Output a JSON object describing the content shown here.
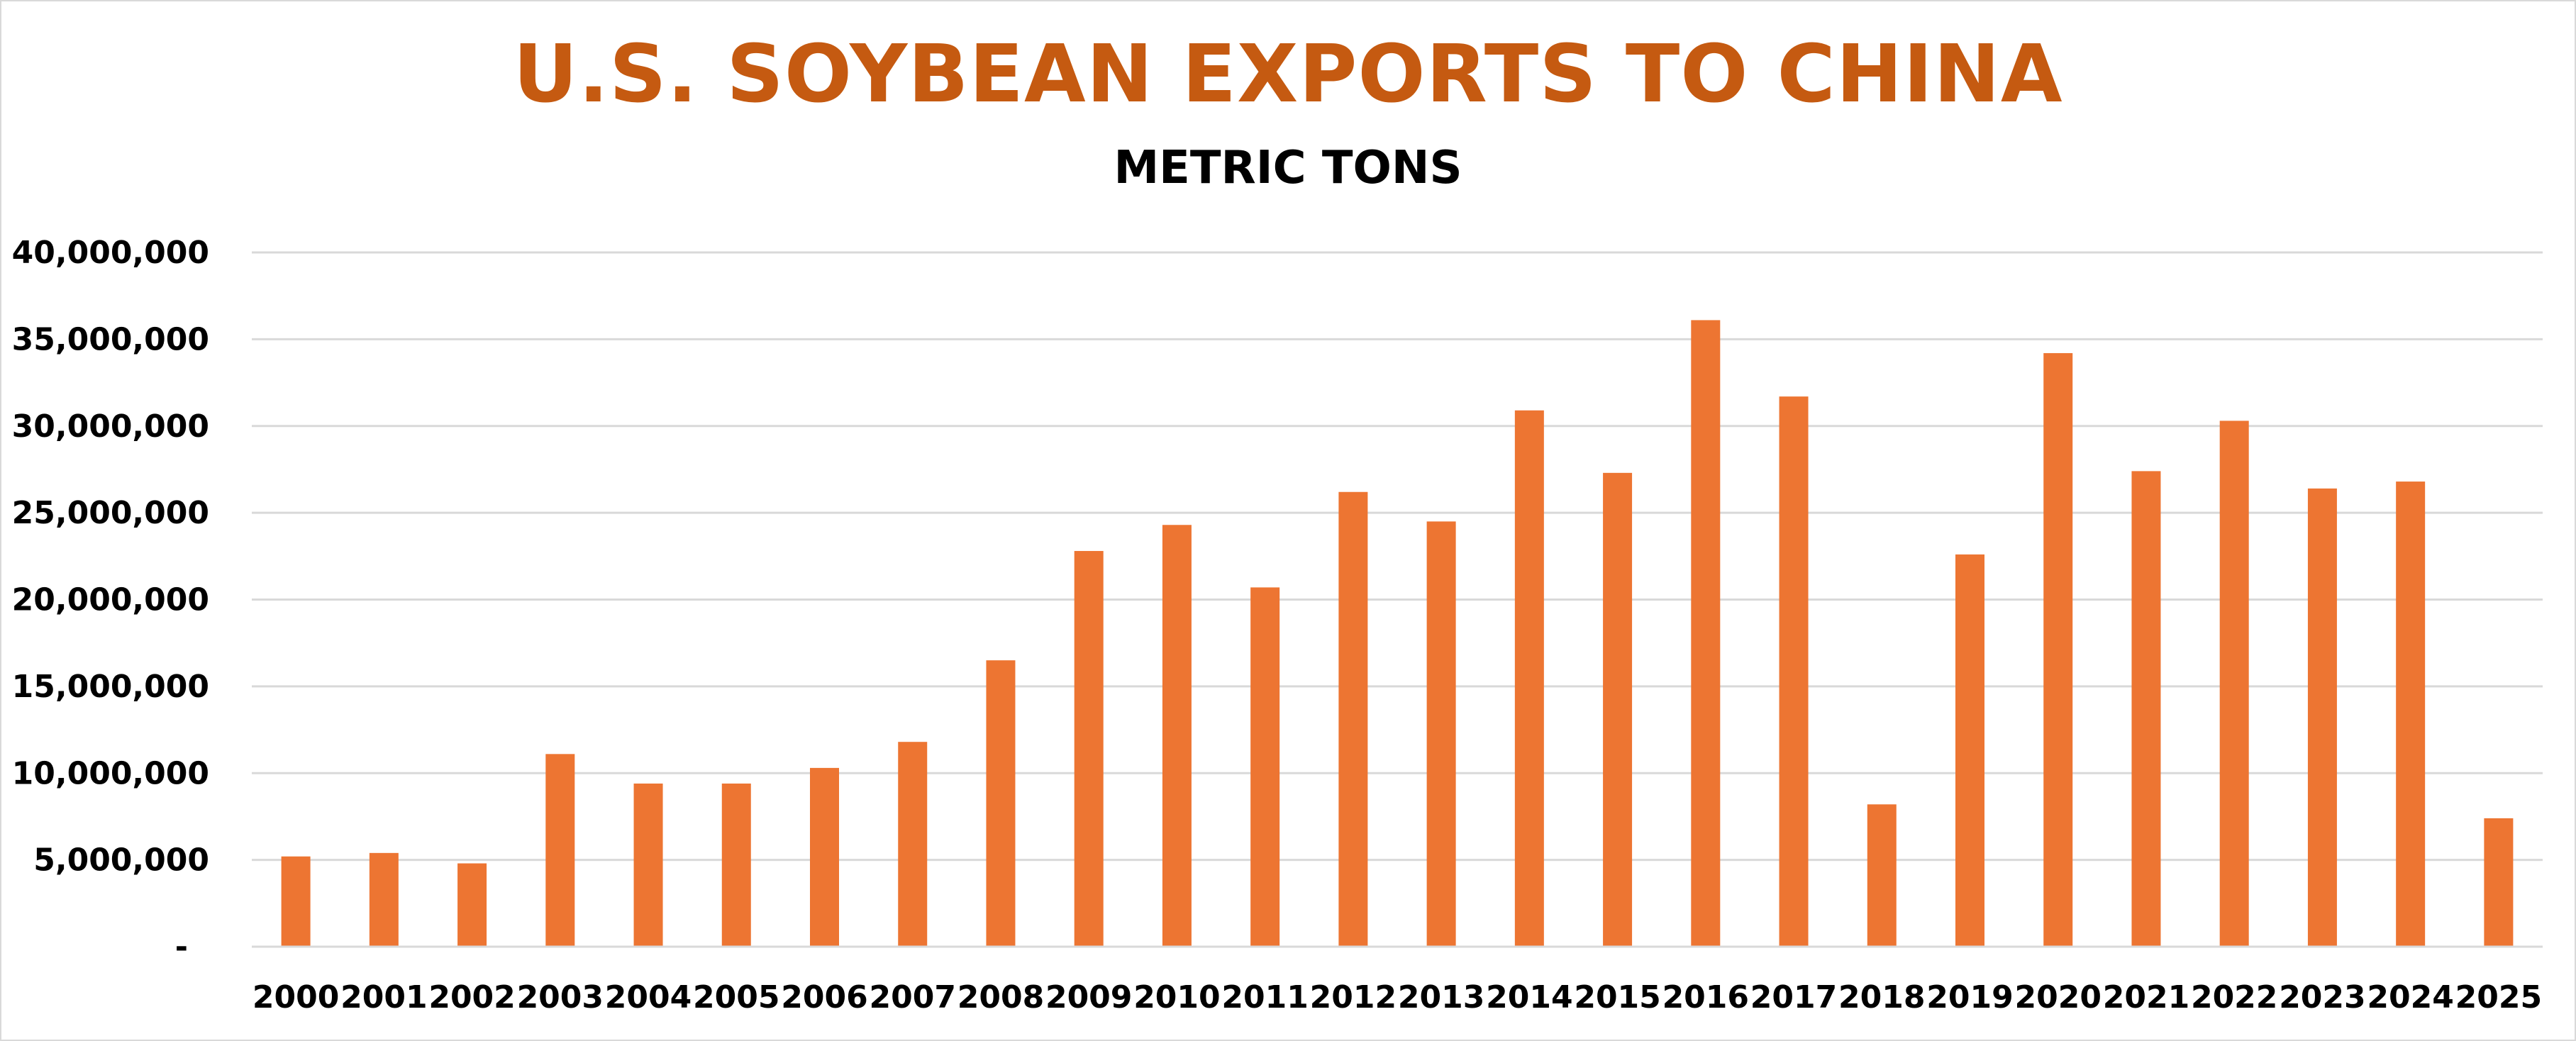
{
  "chart_data": {
    "type": "bar",
    "title": "U.S. SOYBEAN EXPORTS TO CHINA",
    "subtitle": "METRIC TONS",
    "xlabel": "",
    "ylabel": "",
    "categories": [
      "2000",
      "2001",
      "2002",
      "2003",
      "2004",
      "2005",
      "2006",
      "2007",
      "2008",
      "2009",
      "2010",
      "2011",
      "2012",
      "2013",
      "2014",
      "2015",
      "2016",
      "2017",
      "2018",
      "2019",
      "2020",
      "2021",
      "2022",
      "2023",
      "2024",
      "2025"
    ],
    "values": [
      5200000,
      5400000,
      4800000,
      11100000,
      9400000,
      9400000,
      10300000,
      11800000,
      16500000,
      22800000,
      24300000,
      20700000,
      26200000,
      24500000,
      30900000,
      27300000,
      36100000,
      31700000,
      8200000,
      22600000,
      34200000,
      27400000,
      30300000,
      26400000,
      26800000,
      7400000
    ],
    "ylim": [
      0,
      40000000
    ],
    "y_ticks": [
      {
        "value": 0,
        "label": "-"
      },
      {
        "value": 5000000,
        "label": "5,000,000"
      },
      {
        "value": 10000000,
        "label": "10,000,000"
      },
      {
        "value": 15000000,
        "label": "15,000,000"
      },
      {
        "value": 20000000,
        "label": "20,000,000"
      },
      {
        "value": 25000000,
        "label": "25,000,000"
      },
      {
        "value": 30000000,
        "label": "30,000,000"
      },
      {
        "value": 35000000,
        "label": "35,000,000"
      },
      {
        "value": 40000000,
        "label": "40,000,000"
      }
    ],
    "grid": true,
    "legend": "none",
    "colors": {
      "bar": "#ed7532",
      "title": "#c55a11",
      "grid": "#d9d9d9"
    }
  }
}
